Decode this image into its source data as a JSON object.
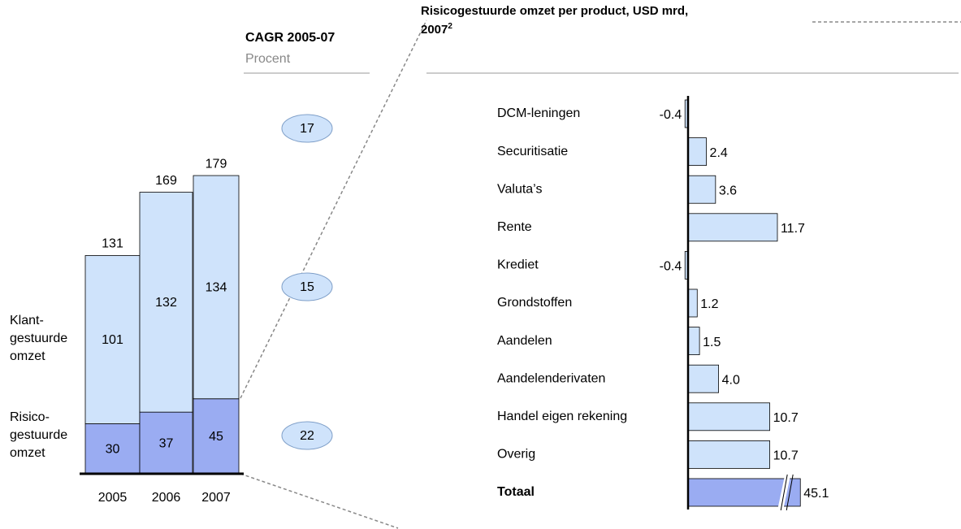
{
  "chart_data": [
    {
      "type": "stacked_bar",
      "header": "CAGR 2005-07",
      "subheader": "Procent",
      "categories": [
        "2005",
        "2006",
        "2007"
      ],
      "series": [
        {
          "name": "Risico-\ngestuurde\nomzet",
          "color": "#9aacf2",
          "values": [
            30,
            37,
            45
          ],
          "cagr": 22
        },
        {
          "name": "Klant-\ngestuurde\nomzet",
          "color": "#cfe3fb",
          "values": [
            101,
            132,
            134
          ],
          "cagr": 15
        }
      ],
      "totals": [
        131,
        169,
        179
      ],
      "total_cagr": 17,
      "ylim": [
        0,
        200
      ]
    },
    {
      "type": "hbar",
      "title": "Risicogestuurde omzet per product, USD mrd,\n2007",
      "title_footnote": "2",
      "categories": [
        "DCM-leningen",
        "Securitisatie",
        "Valuta’s",
        "Rente",
        "Krediet",
        "Grondstoffen",
        "Aandelen",
        "Aandelenderivaten",
        "Handel eigen rekening",
        "Overig",
        "Totaal"
      ],
      "values": [
        -0.4,
        2.4,
        3.6,
        11.7,
        -0.4,
        1.2,
        1.5,
        4.0,
        10.7,
        10.7,
        45.1
      ],
      "value_labels": [
        "-0.4",
        "2.4",
        "3.6",
        "11.7",
        "-0.4",
        "1.2",
        "1.5",
        "4.0",
        "10.7",
        "10.7",
        "45.1"
      ],
      "colors": [
        "#cfe3fb",
        "#cfe3fb",
        "#cfe3fb",
        "#cfe3fb",
        "#cfe3fb",
        "#cfe3fb",
        "#cfe3fb",
        "#cfe3fb",
        "#cfe3fb",
        "#cfe3fb",
        "#9aacf2"
      ],
      "xlim": [
        -0.5,
        13
      ],
      "axis_break": true
    }
  ]
}
